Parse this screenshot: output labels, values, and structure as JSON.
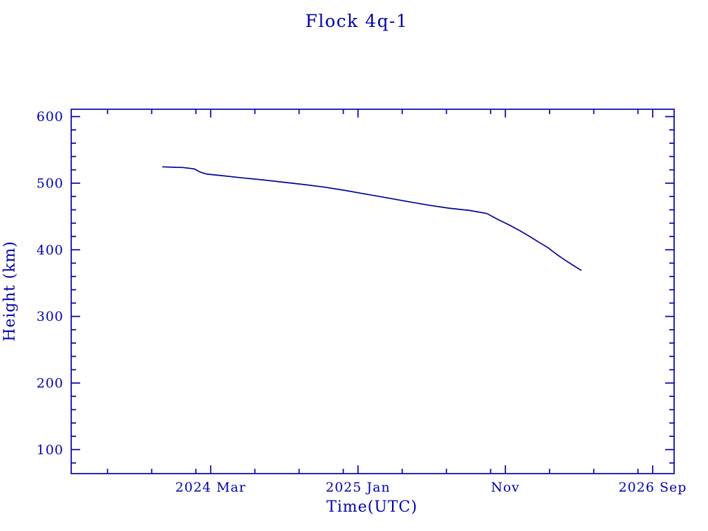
{
  "page": {
    "background_color": "#ffffff"
  },
  "chart_data": {
    "type": "line",
    "title": "Flock 4q-1",
    "xlabel": "Time(UTC)",
    "ylabel": "Height (km)",
    "accent_color": "#0000AA",
    "line_color": "#000099",
    "grid": false,
    "legend": false,
    "x_axis": {
      "unit": "decimal_year",
      "range": [
        2023.378,
        2026.788
      ],
      "major_ticks": [
        {
          "value": 2024.1667,
          "label": "2024 Mar"
        },
        {
          "value": 2025.0,
          "label": "2025 Jan"
        },
        {
          "value": 2025.8333,
          "label": "Nov"
        },
        {
          "value": 2026.6667,
          "label": "2026 Sep"
        }
      ],
      "minor_ticks": [
        2023.5833,
        2023.8333,
        2024.0833,
        2024.4167,
        2024.6667,
        2024.9167,
        2025.25,
        2025.5,
        2025.75,
        2026.0833,
        2026.3333,
        2026.5833
      ]
    },
    "y_axis": {
      "unit": "km",
      "range": [
        64,
        611
      ],
      "major_ticks": [
        {
          "value": 100,
          "label": "100"
        },
        {
          "value": 200,
          "label": "200"
        },
        {
          "value": 300,
          "label": "300"
        },
        {
          "value": 400,
          "label": "400"
        },
        {
          "value": 500,
          "label": "500"
        },
        {
          "value": 600,
          "label": "600"
        }
      ],
      "minor_step": 20
    },
    "series": [
      {
        "name": "Flock 4q-1 height",
        "points": [
          [
            2023.893,
            524.5
          ],
          [
            2024.01,
            523.5
          ],
          [
            2024.073,
            521.5
          ],
          [
            2024.108,
            516.5
          ],
          [
            2024.147,
            513.5
          ],
          [
            2024.225,
            511.5
          ],
          [
            2024.343,
            508.0
          ],
          [
            2024.46,
            505.0
          ],
          [
            2024.577,
            501.5
          ],
          [
            2024.694,
            498.0
          ],
          [
            2024.812,
            494.0
          ],
          [
            2024.929,
            489.0
          ],
          [
            2025.046,
            483.5
          ],
          [
            2025.163,
            478.0
          ],
          [
            2025.28,
            472.5
          ],
          [
            2025.398,
            467.0
          ],
          [
            2025.515,
            462.5
          ],
          [
            2025.632,
            459.0
          ],
          [
            2025.729,
            454.5
          ],
          [
            2025.788,
            446.0
          ],
          [
            2025.854,
            437.5
          ],
          [
            2025.913,
            429.0
          ],
          [
            2025.971,
            420.0
          ],
          [
            2026.022,
            411.5
          ],
          [
            2026.073,
            403.5
          ],
          [
            2026.124,
            393.0
          ],
          [
            2026.171,
            384.5
          ],
          [
            2026.218,
            376.5
          ],
          [
            2026.264,
            369.0
          ]
        ]
      }
    ]
  }
}
